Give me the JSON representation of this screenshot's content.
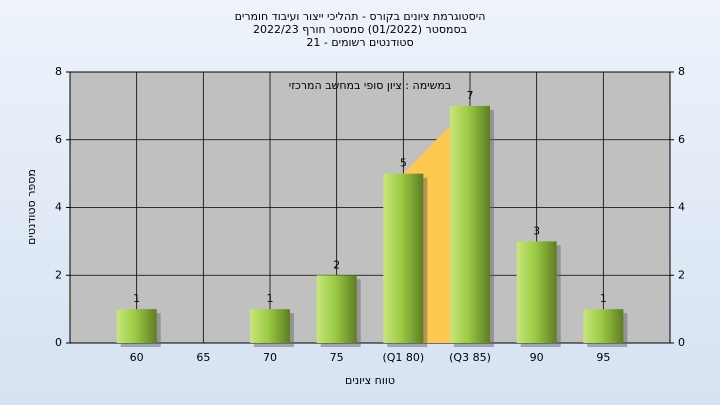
{
  "chart_data": {
    "type": "bar",
    "title": [
      "היסטוגרמת ציונים בקורס - תהליכי ייצור ועיבוד חומרים",
      "בסמסטר  (01/2022)  סמסטר חורף 2022/23",
      "סטודנטים רשומים - 21"
    ],
    "annotation": "במשימה : ציון סופי במחשב המרכזי",
    "x_label": "טווח ציונים",
    "y_label": "מספר סטודנטים",
    "categories": [
      "60",
      "65",
      "70",
      "75",
      "(Q1 80)",
      "(Q3 85)",
      "90",
      "95"
    ],
    "values": [
      1,
      0,
      1,
      2,
      5,
      7,
      3,
      1
    ],
    "color": "#8fbf3a",
    "quartile_color": "#ffc94f",
    "ylim": [
      0,
      8
    ],
    "yticks": [
      0,
      2,
      4,
      6,
      8
    ],
    "y2lim": [
      0,
      8
    ],
    "y2ticks": [
      0,
      2,
      4,
      6,
      8
    ],
    "grid": true
  }
}
